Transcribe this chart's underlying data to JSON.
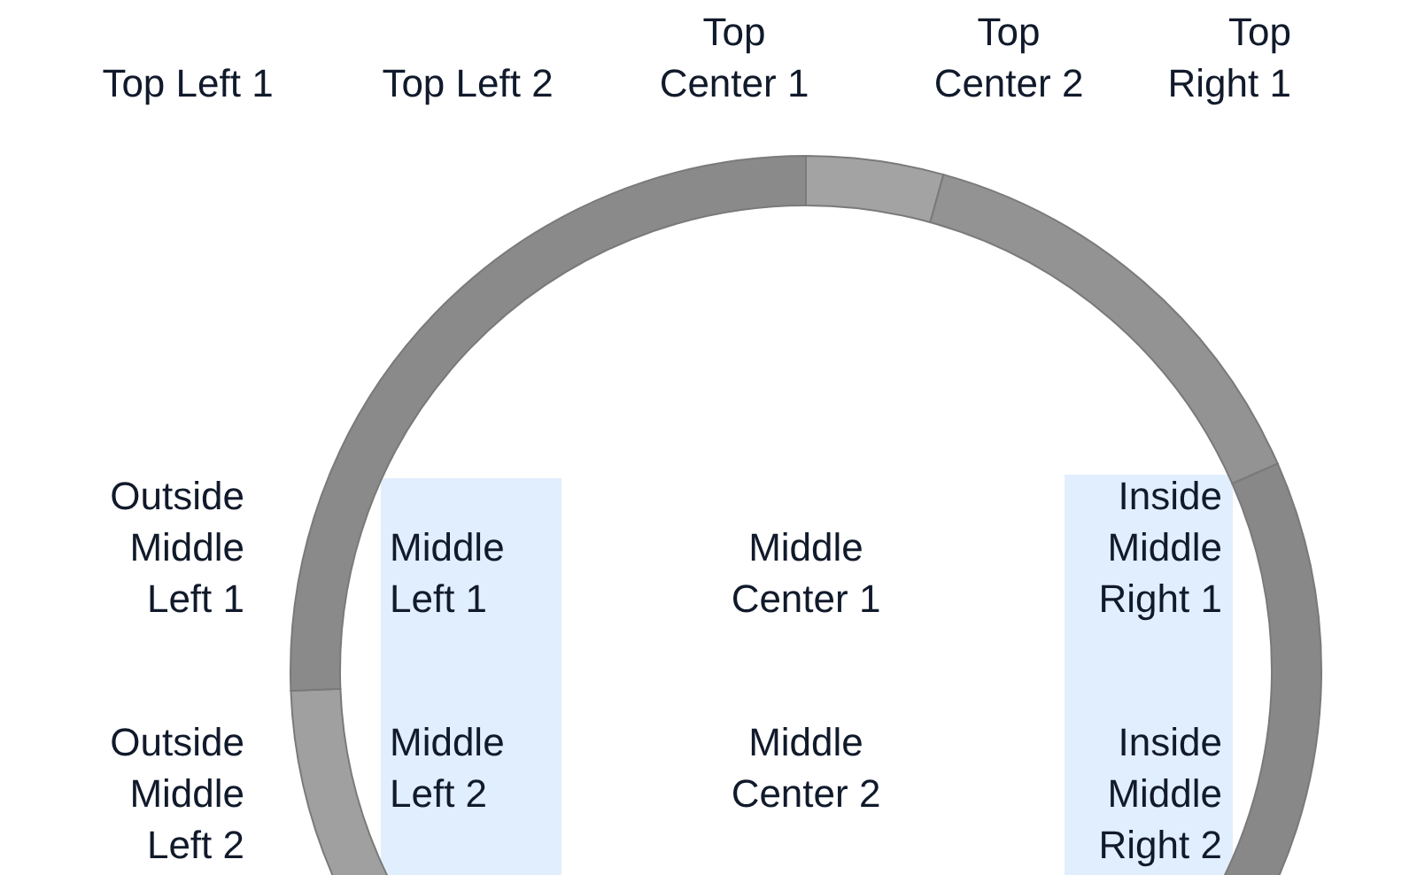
{
  "chart_data": {
    "type": "donut",
    "categories": [
      null,
      null,
      null,
      null,
      null
    ],
    "values": [
      4.3,
      14.1,
      31.6,
      24.4,
      25.6
    ],
    "colors": [
      "#a3a3a3",
      "#939393",
      "#888888",
      "#a0a0a0",
      "#8a8a8a"
    ],
    "annotations": [
      "Top Left 1",
      "Top Left 2",
      "Top Center 1",
      "Top Center 2",
      "Top Right 1",
      "Outside Middle Left 1",
      "Middle Left 1",
      "Middle Center 1",
      "Inside Middle Right 1",
      "Outside Middle Left 2",
      "Middle Left 2",
      "Middle Center 2",
      "Inside Middle Right 2"
    ]
  }
}
